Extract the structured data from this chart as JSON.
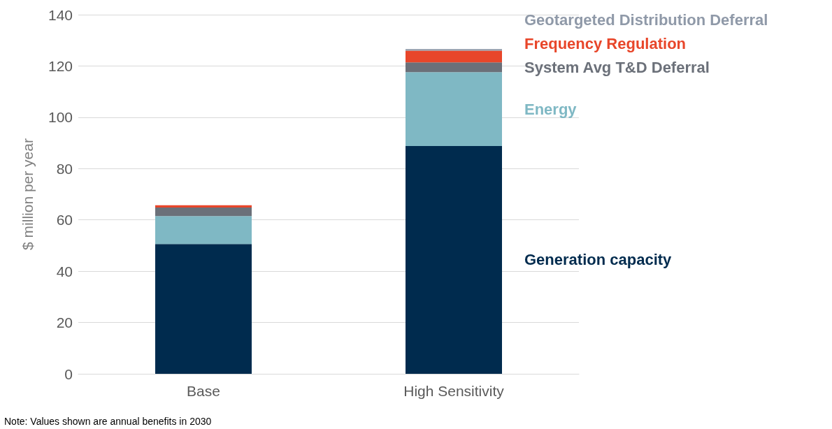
{
  "chart_data": {
    "type": "bar",
    "stacked": true,
    "categories": [
      "Base",
      "High Sensitivity"
    ],
    "series": [
      {
        "name": "Generation capacity",
        "color": "#002b4e",
        "values": [
          50.6,
          88.8
        ]
      },
      {
        "name": "Energy",
        "color": "#7fb8c4",
        "values": [
          10.9,
          28.8
        ]
      },
      {
        "name": "System Avg T&D Deferral",
        "color": "#6b7079",
        "values": [
          3.3,
          3.8
        ]
      },
      {
        "name": "Frequency Regulation",
        "color": "#e8462a",
        "values": [
          0.9,
          4.6
        ]
      },
      {
        "name": "Geotargeted Distribution Deferral",
        "color": "#8f99a8",
        "values": [
          0,
          0.6
        ]
      }
    ],
    "ylabel": "$ million per year",
    "ylim": [
      0,
      140
    ],
    "yticks": [
      0,
      20,
      40,
      60,
      80,
      100,
      120,
      140
    ],
    "grid": "y",
    "legend": false,
    "annotations": [
      "Note: Values shown are annual benefits in 2030"
    ]
  }
}
